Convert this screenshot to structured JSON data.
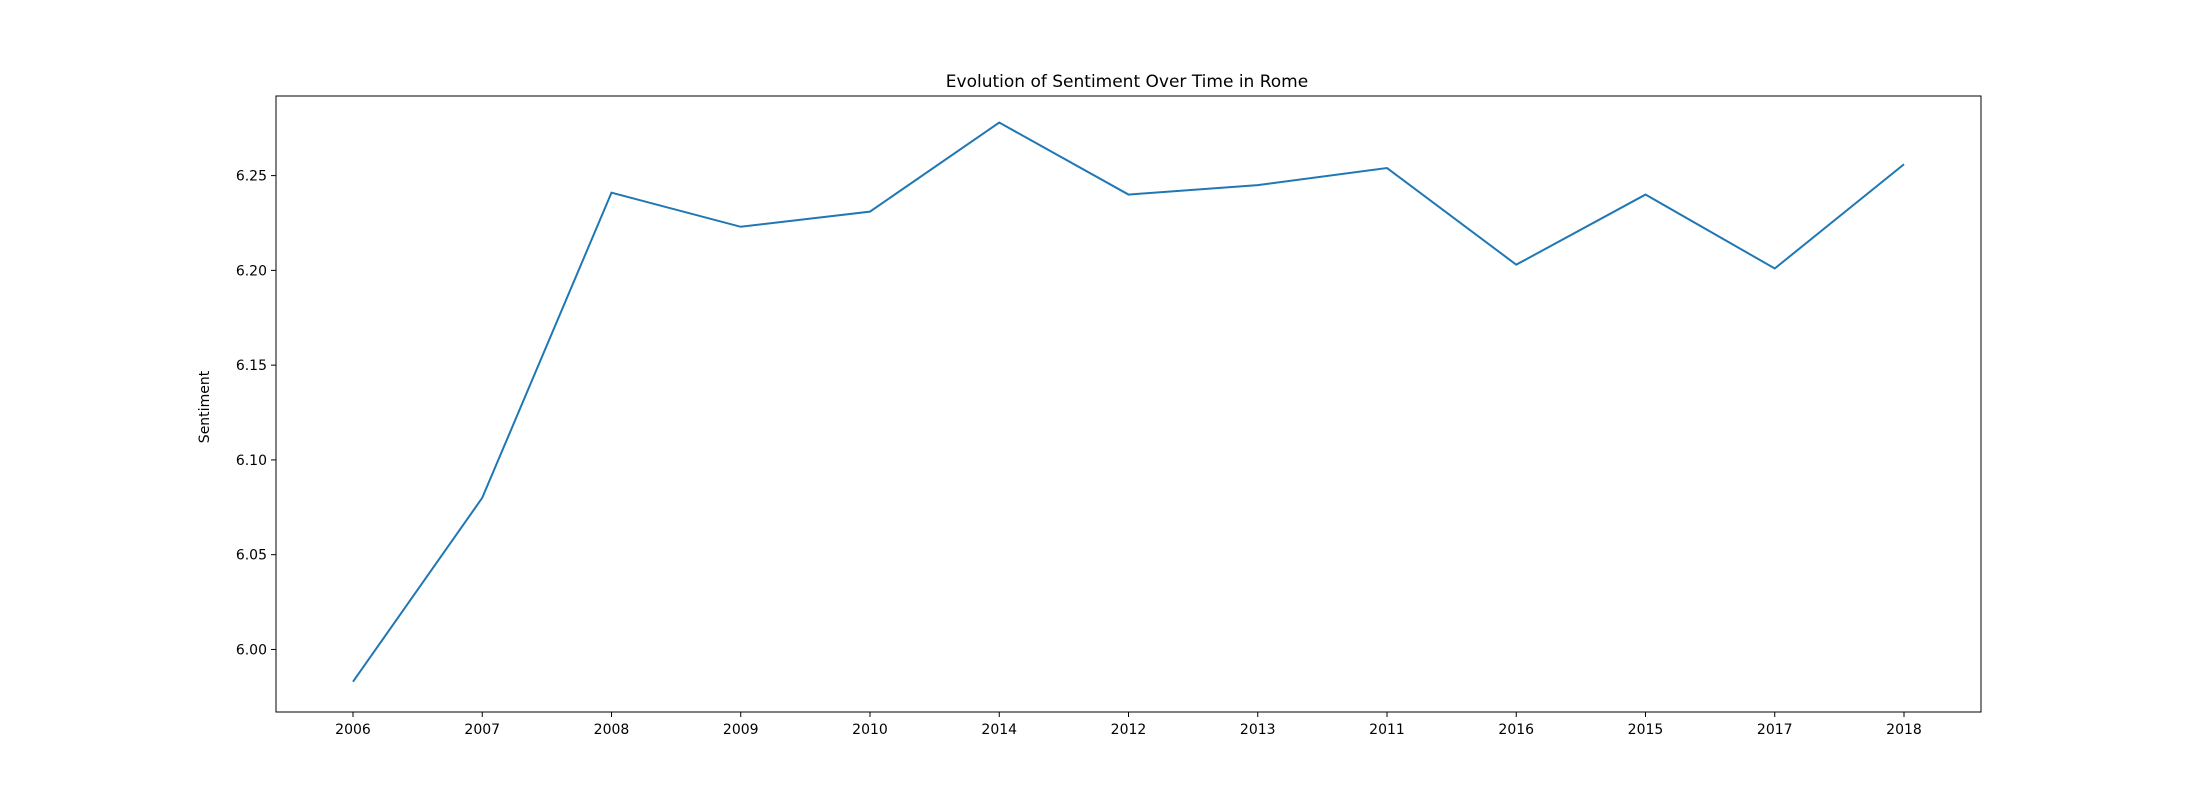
{
  "chart_data": {
    "type": "line",
    "title": "Evolution of Sentiment Over Time in Rome",
    "xlabel": "",
    "ylabel": "Sentiment",
    "categories": [
      "2006",
      "2007",
      "2008",
      "2009",
      "2010",
      "2014",
      "2012",
      "2013",
      "2011",
      "2016",
      "2015",
      "2017",
      "2018"
    ],
    "series": [
      {
        "values": [
          5.983,
          6.08,
          6.241,
          6.223,
          6.231,
          6.278,
          6.24,
          6.245,
          6.254,
          6.203,
          6.24,
          6.201,
          6.256
        ],
        "color": "#1f77b4"
      }
    ],
    "yticks": [
      "6.00",
      "6.05",
      "6.10",
      "6.15",
      "6.20",
      "6.25"
    ],
    "ylim": [
      5.967,
      6.292
    ],
    "grid": false
  }
}
